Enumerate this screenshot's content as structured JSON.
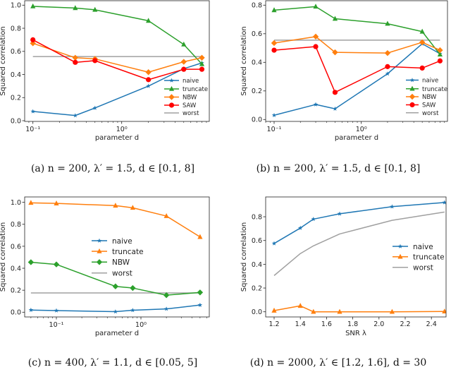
{
  "chart_data": [
    {
      "type": "line",
      "caption": "(a) n = 200, λ′ = 1.5, d ∈ [0.1, 8]",
      "xlabel": "parameter d",
      "ylabel": "Squared correlation",
      "xscale": "log",
      "x_tick_labels": [
        "10⁻¹",
        "10⁰"
      ],
      "y_ticks": [
        0.0,
        0.2,
        0.4,
        0.6,
        0.8,
        1.0
      ],
      "ylim": [
        0.0,
        1.04
      ],
      "legend_placement": "lower right",
      "x": [
        0.1,
        0.3,
        0.5,
        2,
        5,
        8
      ],
      "series": [
        {
          "name": "naive",
          "color": "#1f77b4",
          "marker": "star",
          "values": [
            0.08,
            0.045,
            0.11,
            0.3,
            0.45,
            0.5
          ]
        },
        {
          "name": "truncate",
          "color": "#2ca02c",
          "marker": "triangle",
          "values": [
            0.99,
            0.975,
            0.96,
            0.865,
            0.66,
            0.49
          ]
        },
        {
          "name": "NBW",
          "color": "#ff7f0e",
          "marker": "diamond",
          "values": [
            0.67,
            0.545,
            0.535,
            0.42,
            0.51,
            0.545
          ]
        },
        {
          "name": "SAW",
          "color": "#ff0000",
          "marker": "circle",
          "values": [
            0.7,
            0.505,
            0.52,
            0.355,
            0.445,
            0.445
          ]
        },
        {
          "name": "worst",
          "color": "#a0a0a0",
          "marker": "none",
          "values": [
            0.555,
            0.555,
            0.555,
            0.555,
            0.555,
            0.555
          ]
        }
      ]
    },
    {
      "type": "line",
      "caption": "(b) n = 200, λ′ = 1.5, d ∈ [0.1, 8]",
      "xlabel": "parameter d",
      "ylabel": "Squared correlation",
      "xscale": "log",
      "x_tick_labels": [
        "10⁻¹",
        "10⁰"
      ],
      "y_ticks": [
        0.0,
        0.2,
        0.4,
        0.6,
        0.8
      ],
      "ylim": [
        0.0,
        0.83
      ],
      "legend_placement": "lower right",
      "x": [
        0.1,
        0.3,
        0.5,
        2,
        5,
        8
      ],
      "series": [
        {
          "name": "naive",
          "color": "#1f77b4",
          "marker": "star",
          "values": [
            0.03,
            0.105,
            0.075,
            0.32,
            0.53,
            0.46
          ]
        },
        {
          "name": "truncate",
          "color": "#2ca02c",
          "marker": "triangle",
          "values": [
            0.765,
            0.79,
            0.705,
            0.67,
            0.615,
            0.455
          ]
        },
        {
          "name": "NBW",
          "color": "#ff7f0e",
          "marker": "diamond",
          "values": [
            0.535,
            0.58,
            0.47,
            0.465,
            0.54,
            0.485
          ]
        },
        {
          "name": "SAW",
          "color": "#ff0000",
          "marker": "circle",
          "values": [
            0.485,
            0.51,
            0.19,
            0.37,
            0.36,
            0.41
          ]
        },
        {
          "name": "worst",
          "color": "#a0a0a0",
          "marker": "none",
          "values": [
            0.555,
            0.555,
            0.555,
            0.555,
            0.555,
            0.555
          ]
        }
      ]
    },
    {
      "type": "line",
      "caption": "(c) n = 400, λ′ = 1.1, d ∈ [0.05, 5]",
      "xlabel": "parameter d",
      "ylabel": "Squared correlation",
      "xscale": "log",
      "x_tick_labels": [
        "10⁻¹",
        "10⁰"
      ],
      "y_ticks": [
        0.0,
        0.2,
        0.4,
        0.6,
        0.8,
        1.0
      ],
      "ylim": [
        -0.04,
        1.05
      ],
      "legend_placement": "center",
      "x": [
        0.05,
        0.1,
        0.5,
        0.8,
        2,
        5
      ],
      "series": [
        {
          "name": "naive",
          "color": "#1f77b4",
          "marker": "star",
          "values": [
            0.02,
            0.015,
            0.005,
            0.018,
            0.03,
            0.065
          ]
        },
        {
          "name": "truncate",
          "color": "#ff7f0e",
          "marker": "triangle",
          "values": [
            0.995,
            0.99,
            0.97,
            0.95,
            0.875,
            0.685
          ]
        },
        {
          "name": "NBW",
          "color": "#2ca02c",
          "marker": "diamond",
          "values": [
            0.455,
            0.435,
            0.235,
            0.22,
            0.155,
            0.18
          ]
        },
        {
          "name": "worst",
          "color": "#a0a0a0",
          "marker": "none",
          "values": [
            0.175,
            0.175,
            0.175,
            0.175,
            0.175,
            0.175
          ]
        }
      ]
    },
    {
      "type": "line",
      "caption": "(d) n = 2000, λ′ ∈ [1.2, 1.6], d = 30",
      "xlabel": "SNR λ",
      "ylabel": "Squared correlation",
      "xscale": "linear",
      "x_ticks": [
        1.2,
        1.4,
        1.6,
        1.8,
        2.0,
        2.2,
        2.4
      ],
      "y_ticks": [
        0.0,
        0.2,
        0.4,
        0.6,
        0.8
      ],
      "ylim": [
        -0.04,
        0.96
      ],
      "legend_placement": "center right",
      "x": [
        1.2,
        1.4,
        1.5,
        1.7,
        2.1,
        2.5
      ],
      "series": [
        {
          "name": "naive",
          "color": "#1f77b4",
          "marker": "star",
          "values": [
            0.575,
            0.705,
            0.78,
            0.825,
            0.885,
            0.92
          ]
        },
        {
          "name": "truncate",
          "color": "#ff7f0e",
          "marker": "triangle",
          "values": [
            0.01,
            0.05,
            0.0,
            0.0,
            0.0,
            0.003
          ]
        },
        {
          "name": "worst",
          "color": "#a0a0a0",
          "marker": "none",
          "values": [
            0.305,
            0.49,
            0.555,
            0.655,
            0.77,
            0.84
          ]
        }
      ]
    }
  ]
}
